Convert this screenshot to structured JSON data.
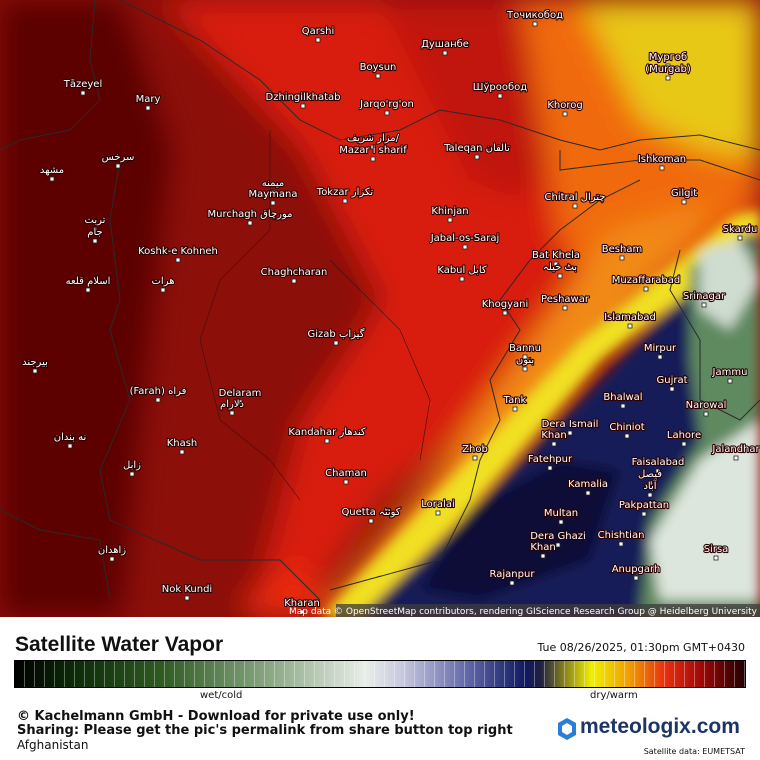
{
  "map": {
    "places": [
      "Qarshi",
      "Душанбе",
      "Точикобод",
      "Boysun",
      "Мургоб",
      "(Murgab)",
      "Tāzeyel",
      "Mary",
      "Dzhingilkhatab",
      "Jarqo'rg'on",
      "Шўрообод",
      "Khorog",
      "مزار شریف/",
      "Mazar i sharif",
      "Taleqan تالقان",
      "Ishkoman",
      "سرخس",
      "مشهد",
      "میمنه",
      "Maymana",
      "Tokzar تکزار",
      "Chitral چترال",
      "Gilgit",
      "Murchagh مورچاق",
      "Khinjan",
      "تربت",
      "جام",
      "Jabal-os-Saraj",
      "Skardu",
      "Koshk-e Kohneh",
      "Bat Khela",
      "بٹ خیلہ",
      "Besham",
      "Chaghcharan",
      "Kabul کابل",
      "Muzaffarabad",
      "اسلام قلعه",
      "هرات",
      "Peshawar",
      "Khogyani",
      "Srinagar",
      "Islamabad",
      "Gizab گیزاب",
      "Bannu",
      "بنوں",
      "Mirpur",
      "بیرجند",
      "Jammu",
      "Gujrat",
      "(Farah) فراه",
      "Delaram",
      "دلارام",
      "Bhalwal",
      "Tank",
      "Narowal",
      "Dera Ismail",
      "Khan",
      "Chiniot",
      "Lahore",
      "نه بندان",
      "Khash",
      "Kandahar کندهار",
      "Jalandhar",
      "Zhob",
      "Fatehpur",
      "Faisalabad",
      "فیصل",
      "آباد",
      "زابل",
      "Chaman",
      "Kamalia",
      "Loralai",
      "Quetta کوئٹہ",
      "Multan",
      "Pakpattan",
      "Dera Ghazi",
      "Khan",
      "Chishtian",
      "زاهدان",
      "Sirsa",
      "Anupgarh",
      "Rajanpur",
      "Nok Kundi",
      "Kharan"
    ],
    "attribution": "Map data © OpenStreetMap contributors, rendering GIScience Research Group @ Heidelberg University"
  },
  "footer": {
    "title": "Satellite Water Vapor",
    "date": "Tue 08/26/2025, 01:30pm GMT+0430",
    "legend_low": "wet/cold",
    "legend_high": "dry/warm",
    "copyright": "© Kachelmann GmbH - Download for private use only!",
    "sharing": "Sharing: Please get the pic's permalink from share button top right",
    "region": "Afghanistan",
    "logo": "meteologix.com",
    "source": "Satellite data: EUMETSAT"
  }
}
